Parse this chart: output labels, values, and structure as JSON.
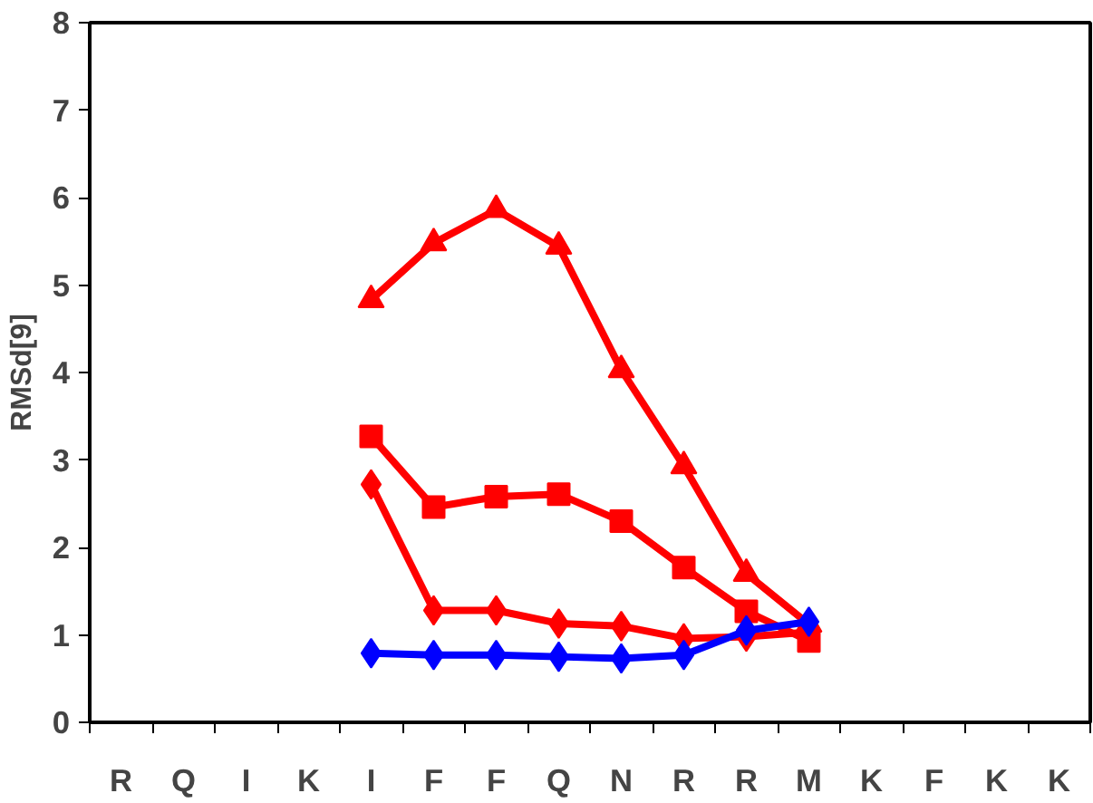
{
  "chart_data": {
    "type": "line",
    "ylabel": "RMSd[9]",
    "categories": [
      "R",
      "Q",
      "I",
      "K",
      "I",
      "F",
      "F",
      "Q",
      "N",
      "R",
      "R",
      "M",
      "K",
      "F",
      "K",
      "K"
    ],
    "ylim": [
      0,
      8
    ],
    "yticks": [
      0,
      1,
      2,
      3,
      4,
      5,
      6,
      7,
      8
    ],
    "grid": false,
    "series": [
      {
        "color": "#0000ff",
        "marker": "diamond",
        "values": [
          null,
          null,
          null,
          null,
          0.79,
          0.77,
          0.77,
          0.75,
          0.73,
          0.77,
          1.05,
          1.15,
          null,
          null,
          null,
          null
        ]
      },
      {
        "color": "#ff0000",
        "marker": "diamond",
        "values": [
          null,
          null,
          null,
          null,
          2.72,
          1.28,
          1.28,
          1.13,
          1.1,
          0.96,
          0.98,
          1.03,
          null,
          null,
          null,
          null
        ]
      },
      {
        "color": "#ff0000",
        "marker": "square",
        "values": [
          null,
          null,
          null,
          null,
          3.27,
          2.46,
          2.58,
          2.61,
          2.3,
          1.77,
          1.27,
          0.93,
          null,
          null,
          null,
          null
        ]
      },
      {
        "color": "#ff0000",
        "marker": "triangle",
        "values": [
          null,
          null,
          null,
          null,
          4.83,
          5.48,
          5.86,
          5.44,
          4.03,
          2.93,
          1.7,
          1.12,
          null,
          null,
          null,
          null
        ]
      }
    ]
  }
}
